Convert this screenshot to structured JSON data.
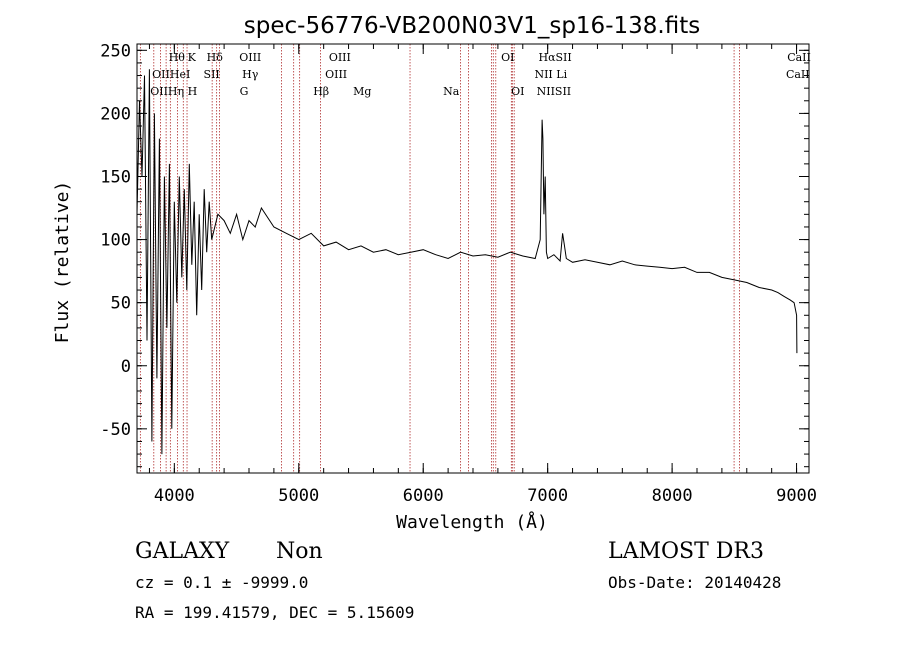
{
  "chart_data": {
    "type": "line",
    "title": "spec-56776-VB200N03V1_sp16-138.fits",
    "xlabel": "Wavelength (Å)",
    "ylabel": "Flux (relative)",
    "xlim": [
      3700,
      9100
    ],
    "ylim": [
      -85,
      255
    ],
    "xticks": [
      4000,
      5000,
      6000,
      7000,
      8000,
      9000
    ],
    "yticks": [
      -50,
      0,
      50,
      100,
      150,
      200,
      250
    ],
    "grid": false,
    "series": [
      {
        "name": "flux",
        "x": [
          3700,
          3720,
          3740,
          3760,
          3780,
          3800,
          3820,
          3840,
          3860,
          3880,
          3900,
          3920,
          3940,
          3960,
          3980,
          4000,
          4020,
          4040,
          4060,
          4080,
          4100,
          4120,
          4140,
          4160,
          4180,
          4200,
          4220,
          4240,
          4260,
          4280,
          4300,
          4350,
          4400,
          4450,
          4500,
          4550,
          4600,
          4650,
          4700,
          4800,
          4900,
          5000,
          5100,
          5200,
          5300,
          5400,
          5500,
          5600,
          5700,
          5800,
          5900,
          6000,
          6100,
          6200,
          6300,
          6400,
          6500,
          6600,
          6700,
          6800,
          6900,
          6940,
          6955,
          6962,
          6970,
          6980,
          6990,
          7000,
          7050,
          7100,
          7120,
          7135,
          7150,
          7200,
          7300,
          7400,
          7500,
          7600,
          7700,
          7800,
          7900,
          8000,
          8100,
          8200,
          8300,
          8400,
          8500,
          8600,
          8650,
          8700,
          8800,
          8850,
          8900,
          8950,
          8980,
          9000,
          9003
        ],
        "y": [
          120,
          210,
          150,
          230,
          20,
          235,
          -60,
          200,
          -10,
          180,
          -70,
          150,
          30,
          160,
          -50,
          130,
          50,
          150,
          70,
          140,
          60,
          160,
          80,
          130,
          40,
          120,
          60,
          140,
          90,
          130,
          100,
          120,
          115,
          105,
          120,
          100,
          115,
          110,
          125,
          110,
          105,
          100,
          105,
          95,
          98,
          92,
          95,
          90,
          92,
          88,
          90,
          92,
          88,
          85,
          90,
          87,
          88,
          86,
          90,
          87,
          85,
          100,
          195,
          180,
          120,
          150,
          90,
          85,
          88,
          83,
          105,
          95,
          85,
          82,
          84,
          82,
          80,
          83,
          80,
          79,
          78,
          77,
          78,
          74,
          74,
          70,
          68,
          66,
          64,
          62,
          60,
          58,
          55,
          52,
          50,
          40,
          10
        ]
      }
    ],
    "lines": [
      {
        "x": 3727,
        "labels": [
          "OII",
          "OII"
        ]
      },
      {
        "x": 3835,
        "labels": [
          "Hη"
        ]
      },
      {
        "x": 3889,
        "labels": [
          "Hθ"
        ]
      },
      {
        "x": 3934,
        "labels": [
          "K"
        ]
      },
      {
        "x": 3968,
        "labels": [
          "H"
        ]
      },
      {
        "x": 4026,
        "labels": [
          "HeI"
        ]
      },
      {
        "x": 4072,
        "labels": [
          "SII"
        ]
      },
      {
        "x": 4102,
        "labels": [
          "Hδ"
        ]
      },
      {
        "x": 4304,
        "labels": [
          "G"
        ]
      },
      {
        "x": 4340,
        "labels": [
          "Hγ"
        ]
      },
      {
        "x": 4363,
        "labels": [
          "OIII"
        ]
      },
      {
        "x": 4861,
        "labels": [
          "Hβ"
        ]
      },
      {
        "x": 4959,
        "labels": [
          "OIII"
        ]
      },
      {
        "x": 5007,
        "labels": [
          "OIII"
        ]
      },
      {
        "x": 5175,
        "labels": [
          "Mg"
        ]
      },
      {
        "x": 5894,
        "labels": [
          "Na"
        ]
      },
      {
        "x": 6300,
        "labels": [
          "OI"
        ]
      },
      {
        "x": 6364,
        "labels": [
          "OI"
        ]
      },
      {
        "x": 6548,
        "labels": [
          "NII"
        ]
      },
      {
        "x": 6563,
        "labels": [
          "Hα"
        ]
      },
      {
        "x": 6583,
        "labels": [
          "NII"
        ]
      },
      {
        "x": 6708,
        "labels": [
          "Li"
        ]
      },
      {
        "x": 6716,
        "labels": [
          "SII"
        ]
      },
      {
        "x": 6731,
        "labels": [
          "SII"
        ]
      },
      {
        "x": 8498,
        "labels": [
          "CaII"
        ]
      },
      {
        "x": 8542,
        "labels": [
          "CaII"
        ]
      }
    ],
    "label_rows": [
      {
        "text": "Hθ",
        "x": 4020,
        "row": 1
      },
      {
        "text": "K",
        "x": 4140,
        "row": 1
      },
      {
        "text": "Hδ",
        "x": 4325,
        "row": 1
      },
      {
        "text": "OIII",
        "x": 4610,
        "row": 1
      },
      {
        "text": "OIII",
        "x": 5330,
        "row": 1
      },
      {
        "text": "OI",
        "x": 6680,
        "row": 1
      },
      {
        "text": "HαSII",
        "x": 7060,
        "row": 1
      },
      {
        "text": "CaII",
        "x": 9020,
        "row": 1
      },
      {
        "text": "OIIHeI",
        "x": 3975,
        "row": 2
      },
      {
        "text": "SII",
        "x": 4300,
        "row": 2
      },
      {
        "text": "Hγ",
        "x": 4610,
        "row": 2
      },
      {
        "text": "OIII",
        "x": 5300,
        "row": 2
      },
      {
        "text": "NII Li",
        "x": 7025,
        "row": 2
      },
      {
        "text": "CaII",
        "x": 9010,
        "row": 2
      },
      {
        "text": "OIIHη H",
        "x": 3995,
        "row": 3
      },
      {
        "text": "G",
        "x": 4560,
        "row": 3
      },
      {
        "text": "Hβ",
        "x": 5180,
        "row": 3
      },
      {
        "text": "Mg",
        "x": 5510,
        "row": 3
      },
      {
        "text": "Na",
        "x": 6225,
        "row": 3
      },
      {
        "text": "OI",
        "x": 6760,
        "row": 3
      },
      {
        "text": "NIISII",
        "x": 7050,
        "row": 3
      }
    ]
  },
  "info": {
    "class": "GALAXY",
    "subclass": "Non",
    "survey": "LAMOST DR3",
    "cz": "cz = 0.1 ± -9999.0",
    "obs_date": "Obs-Date: 20140428",
    "radec": "RA = 199.41579, DEC =    5.15609"
  },
  "colors": {
    "axis": "#000000",
    "spectrum": "#000000",
    "line_marker": "#b03030"
  }
}
